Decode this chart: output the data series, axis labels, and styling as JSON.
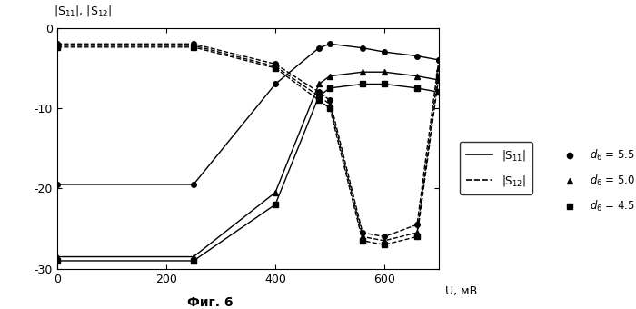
{
  "fig_caption": "Фиг. 6",
  "xlim": [
    0,
    700
  ],
  "ylim": [
    -30,
    0
  ],
  "yticks": [
    0,
    -10,
    -20,
    -30
  ],
  "xticks": [
    0,
    200,
    400,
    600
  ],
  "x_data": [
    0,
    250,
    400,
    480,
    500,
    560,
    600,
    660,
    700
  ],
  "S11_circle": [
    -19.5,
    -19.5,
    -7.0,
    -2.5,
    -2.0,
    -2.5,
    -3.0,
    -3.5,
    -4.0
  ],
  "S11_triangle": [
    -28.5,
    -28.5,
    -20.5,
    -7.0,
    -6.0,
    -5.5,
    -5.5,
    -6.0,
    -6.5
  ],
  "S11_square": [
    -29.0,
    -29.0,
    -22.0,
    -8.5,
    -7.5,
    -7.0,
    -7.0,
    -7.5,
    -8.0
  ],
  "S12_circle": [
    -2.0,
    -2.0,
    -4.5,
    -8.0,
    -9.0,
    -25.5,
    -26.0,
    -24.5,
    -4.0
  ],
  "S12_triangle": [
    -2.2,
    -2.2,
    -4.8,
    -8.5,
    -9.5,
    -26.0,
    -26.5,
    -25.5,
    -5.0
  ],
  "S12_square": [
    -2.4,
    -2.4,
    -5.0,
    -9.0,
    -10.0,
    -26.5,
    -27.0,
    -26.0,
    -6.0
  ],
  "bg_color": "#ffffff"
}
